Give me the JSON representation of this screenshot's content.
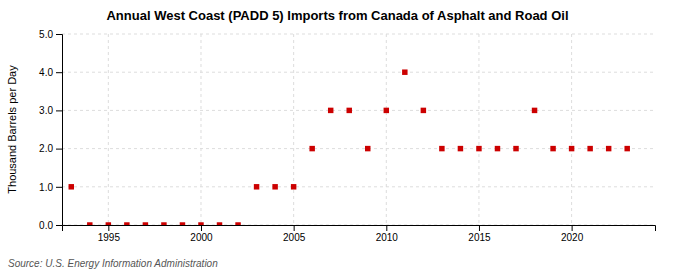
{
  "chart_data": {
    "type": "scatter",
    "title": "Annual West Coast (PADD 5) Imports from Canada of Asphalt and Road Oil",
    "ylabel": "Thousand Barrels per Day",
    "annotation": "Source: U.S. Energy Information Administration",
    "x": [
      1993,
      1994,
      1995,
      1996,
      1997,
      1998,
      1999,
      2000,
      2001,
      2002,
      2003,
      2004,
      2005,
      2006,
      2007,
      2008,
      2009,
      2010,
      2011,
      2012,
      2013,
      2014,
      2015,
      2016,
      2017,
      2018,
      2019,
      2020,
      2021,
      2022,
      2023
    ],
    "values": [
      1.0,
      0.0,
      0.0,
      0.0,
      0.0,
      0.0,
      0.0,
      0.0,
      0.0,
      0.0,
      1.0,
      1.0,
      1.0,
      2.0,
      3.0,
      3.0,
      2.0,
      3.0,
      4.0,
      3.0,
      2.0,
      2.0,
      2.0,
      2.0,
      2.0,
      3.0,
      2.0,
      2.0,
      2.0,
      2.0,
      2.0
    ],
    "color": "#cc0000",
    "marker": "square",
    "xlim": [
      1992.5,
      2024.5
    ],
    "xticks": [
      1995,
      2000,
      2005,
      2010,
      2015,
      2020
    ],
    "ylim": [
      0.0,
      5.0
    ],
    "yticks": [
      {
        "value": 0.0,
        "label": "0.0"
      },
      {
        "value": 1.0,
        "label": "1.0"
      },
      {
        "value": 2.0,
        "label": "2.0"
      },
      {
        "value": 3.0,
        "label": "3.0"
      },
      {
        "value": 4.0,
        "label": "4.0"
      },
      {
        "value": 5.0,
        "label": "5.0"
      }
    ],
    "grid": true
  }
}
